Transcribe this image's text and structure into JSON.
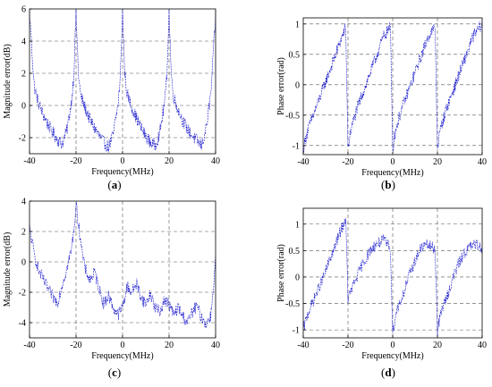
{
  "figure": {
    "panels": [
      {
        "id": "a",
        "caption_letter": "a"
      },
      {
        "id": "b",
        "caption_letter": "b"
      },
      {
        "id": "c",
        "caption_letter": "c"
      },
      {
        "id": "d",
        "caption_letter": "d"
      }
    ]
  },
  "chart_data": [
    {
      "id": "a",
      "type": "line",
      "title": "",
      "xlabel": "Frequency(MHz)",
      "ylabel": "Magnitude error(dB)",
      "xlim": [
        -40,
        40
      ],
      "ylim": [
        -3,
        6
      ],
      "xticks": [
        -40,
        -20,
        0,
        20,
        40
      ],
      "yticks": [
        -2,
        0,
        2,
        4,
        6
      ],
      "grid": true,
      "grid_style": "dashed",
      "series_color": "#1515cc",
      "series": [
        {
          "x": [
            -40,
            -38,
            -36,
            -34,
            -32,
            -30,
            -28,
            -26,
            -24,
            -22,
            -21,
            -20,
            -19,
            -18,
            -16,
            -14,
            -12,
            -10,
            -8,
            -6,
            -4,
            -2,
            -1,
            0,
            1,
            2,
            4,
            6,
            8,
            10,
            12,
            14,
            16,
            18,
            19,
            20,
            21,
            22,
            24,
            26,
            28,
            30,
            32,
            34,
            36,
            38,
            40
          ],
          "y": [
            5.8,
            1.2,
            0.1,
            -0.6,
            -1.2,
            -1.7,
            -2.1,
            -2.4,
            -1.6,
            0.2,
            1.8,
            5.8,
            2.0,
            0.6,
            -0.2,
            -0.9,
            -1.4,
            -1.9,
            -2.3,
            -2.6,
            -1.8,
            0.0,
            1.6,
            5.9,
            1.9,
            0.7,
            -0.1,
            -0.8,
            -1.4,
            -1.9,
            -2.3,
            -2.5,
            -1.7,
            0.1,
            1.7,
            5.8,
            1.8,
            0.5,
            -0.3,
            -1.0,
            -1.5,
            -1.9,
            -2.2,
            -2.5,
            -1.4,
            0.8,
            5.6
          ]
        }
      ]
    },
    {
      "id": "b",
      "type": "line",
      "title": "",
      "xlabel": "Frequency(MHz)",
      "ylabel": "Phase error(rad)",
      "xlim": [
        -40,
        40
      ],
      "ylim": [
        -1.15,
        1.1
      ],
      "xticks": [
        -40,
        -20,
        0,
        20,
        40
      ],
      "yticks": [
        -1,
        -0.5,
        0,
        0.5,
        1
      ],
      "grid": true,
      "grid_style": "dashed",
      "series_color": "#1515cc",
      "series": [
        {
          "x": [
            -40,
            -38,
            -36,
            -34,
            -32,
            -30,
            -28,
            -26,
            -24,
            -22,
            -21,
            -20,
            -19,
            -18,
            -16,
            -14,
            -12,
            -10,
            -8,
            -6,
            -4,
            -2,
            -1,
            0,
            1,
            2,
            4,
            6,
            8,
            10,
            12,
            14,
            16,
            18,
            19,
            20,
            21,
            22,
            24,
            26,
            28,
            30,
            32,
            34,
            36,
            38,
            40
          ],
          "y": [
            -1.05,
            -0.75,
            -0.55,
            -0.35,
            -0.15,
            0.05,
            0.25,
            0.45,
            0.65,
            0.85,
            0.95,
            -1.05,
            -0.8,
            -0.65,
            -0.4,
            -0.2,
            0.0,
            0.2,
            0.4,
            0.6,
            0.8,
            0.9,
            0.95,
            -1.05,
            -0.8,
            -0.65,
            -0.4,
            -0.2,
            0.0,
            0.2,
            0.4,
            0.6,
            0.8,
            0.9,
            0.95,
            -1.05,
            -0.8,
            -0.65,
            -0.4,
            -0.2,
            0.0,
            0.2,
            0.4,
            0.6,
            0.8,
            0.9,
            1.0
          ]
        }
      ]
    },
    {
      "id": "c",
      "type": "line",
      "title": "",
      "xlabel": "Frequency(MHz)",
      "ylabel": "Magnitude error(dB)",
      "xlim": [
        -40,
        40
      ],
      "ylim": [
        -5,
        4
      ],
      "xticks": [
        -40,
        -20,
        0,
        20,
        40
      ],
      "yticks": [
        -4,
        -2,
        0,
        2,
        4
      ],
      "grid": true,
      "grid_style": "dashed",
      "series_color": "#1515cc",
      "series": [
        {
          "x": [
            -40,
            -38,
            -36,
            -34,
            -32,
            -30,
            -28,
            -26,
            -24,
            -22,
            -21,
            -20,
            -19,
            -18,
            -17,
            -16,
            -14,
            -12,
            -10,
            -8,
            -6,
            -4,
            -2,
            0,
            2,
            4,
            6,
            8,
            10,
            12,
            14,
            16,
            18,
            20,
            22,
            24,
            26,
            28,
            30,
            32,
            34,
            36,
            38,
            40
          ],
          "y": [
            2.2,
            0.5,
            -0.6,
            -1.2,
            -1.8,
            -2.3,
            -2.7,
            -1.5,
            -0.5,
            0.8,
            2.0,
            3.8,
            2.5,
            1.5,
            0.2,
            -0.5,
            -1.2,
            -0.7,
            -1.8,
            -2.8,
            -2.2,
            -3.0,
            -3.5,
            -3.0,
            -1.6,
            -2.0,
            -1.4,
            -2.3,
            -2.8,
            -2.1,
            -3.0,
            -3.3,
            -2.5,
            -2.8,
            -3.5,
            -3.0,
            -3.6,
            -4.0,
            -3.3,
            -2.9,
            -3.7,
            -4.1,
            -3.5,
            0.2
          ]
        }
      ]
    },
    {
      "id": "d",
      "type": "line",
      "title": "",
      "xlabel": "Frequency(MHz)",
      "ylabel": "Phase error(rad)",
      "xlim": [
        -40,
        40
      ],
      "ylim": [
        -1.15,
        1.3
      ],
      "xticks": [
        -40,
        -20,
        0,
        20,
        40
      ],
      "yticks": [
        -1,
        -0.5,
        0,
        0.5,
        1
      ],
      "grid": true,
      "grid_style": "dashed",
      "series_color": "#1515cc",
      "series": [
        {
          "x": [
            -40,
            -38,
            -36,
            -34,
            -32,
            -30,
            -28,
            -26,
            -24,
            -22,
            -21,
            -20,
            -19,
            -18,
            -16,
            -14,
            -12,
            -10,
            -8,
            -6,
            -4,
            -2,
            -1,
            0,
            1,
            2,
            4,
            6,
            8,
            10,
            12,
            14,
            16,
            18,
            19,
            20,
            21,
            22,
            24,
            26,
            28,
            30,
            32,
            34,
            36,
            38,
            40
          ],
          "y": [
            -1.0,
            -0.7,
            -0.5,
            -0.3,
            -0.1,
            0.1,
            0.35,
            0.55,
            0.8,
            1.0,
            1.1,
            -0.4,
            -0.3,
            -0.2,
            0.0,
            0.2,
            0.35,
            0.5,
            0.6,
            0.65,
            0.7,
            0.6,
            0.55,
            -1.05,
            -0.8,
            -0.6,
            -0.4,
            -0.15,
            0.1,
            0.3,
            0.5,
            0.6,
            0.6,
            0.55,
            0.5,
            -1.0,
            -0.8,
            -0.6,
            -0.4,
            -0.15,
            0.1,
            0.3,
            0.45,
            0.55,
            0.6,
            0.6,
            0.55
          ]
        }
      ]
    }
  ]
}
